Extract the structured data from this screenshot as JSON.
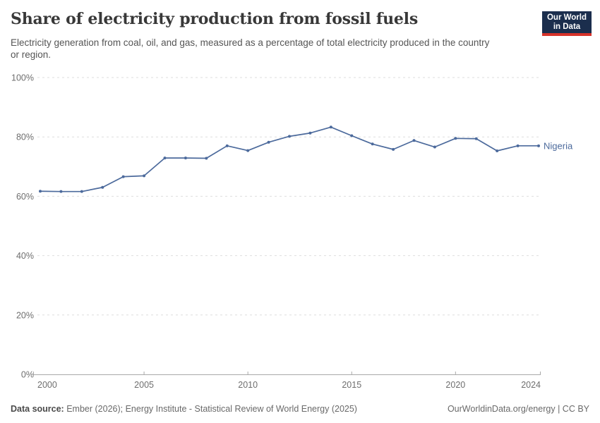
{
  "header": {
    "title": "Share of electricity production from fossil fuels",
    "subtitle": "Electricity generation from coal, oil, and gas, measured as a percentage of total electricity produced in the country or region.",
    "logo": {
      "line1": "Our World",
      "line2": "in Data"
    }
  },
  "chart_data": {
    "type": "line",
    "title": "Share of electricity production from fossil fuels",
    "xlabel": "",
    "ylabel": "",
    "xlim": [
      2000,
      2024
    ],
    "ylim": [
      0,
      100
    ],
    "grid": "horizontal-dashed",
    "legend_position": "end-of-line-label",
    "x": [
      2000,
      2001,
      2002,
      2003,
      2004,
      2005,
      2006,
      2007,
      2008,
      2009,
      2010,
      2011,
      2012,
      2013,
      2014,
      2015,
      2016,
      2017,
      2018,
      2019,
      2020,
      2021,
      2022,
      2023,
      2024
    ],
    "series": [
      {
        "name": "Nigeria",
        "color": "#4C6A9C",
        "values": [
          61.7,
          61.6,
          61.6,
          63.0,
          66.6,
          66.9,
          72.9,
          72.9,
          72.8,
          77.0,
          75.4,
          78.2,
          80.2,
          81.3,
          83.3,
          80.4,
          77.6,
          75.8,
          78.8,
          76.6,
          79.5,
          79.4,
          75.3,
          77.0,
          77.0
        ]
      }
    ],
    "x_ticks": [
      2000,
      2005,
      2010,
      2015,
      2020,
      2024
    ],
    "x_tick_labels": [
      "2000",
      "2005",
      "2010",
      "2015",
      "2020",
      "2024"
    ],
    "y_ticks": [
      0,
      20,
      40,
      60,
      80,
      100
    ],
    "y_tick_labels": [
      "0%",
      "20%",
      "40%",
      "60%",
      "80%",
      "100%"
    ]
  },
  "footer": {
    "source_label": "Data source:",
    "source_text": " Ember (2026); Energy Institute - Statistical Review of World Energy (2025)",
    "link": "OurWorldinData.org/energy",
    "separator": "|",
    "license": "CC BY"
  },
  "colors": {
    "line": "#4C6A9C",
    "grid": "#DDDDDD",
    "axis": "#A9A9A9",
    "tick_label": "#6E6E6E",
    "title": "#383838",
    "subtitle": "#555555",
    "footer": "#696969",
    "logo_bg": "#1B2E4D",
    "logo_accent": "#D7332A"
  }
}
